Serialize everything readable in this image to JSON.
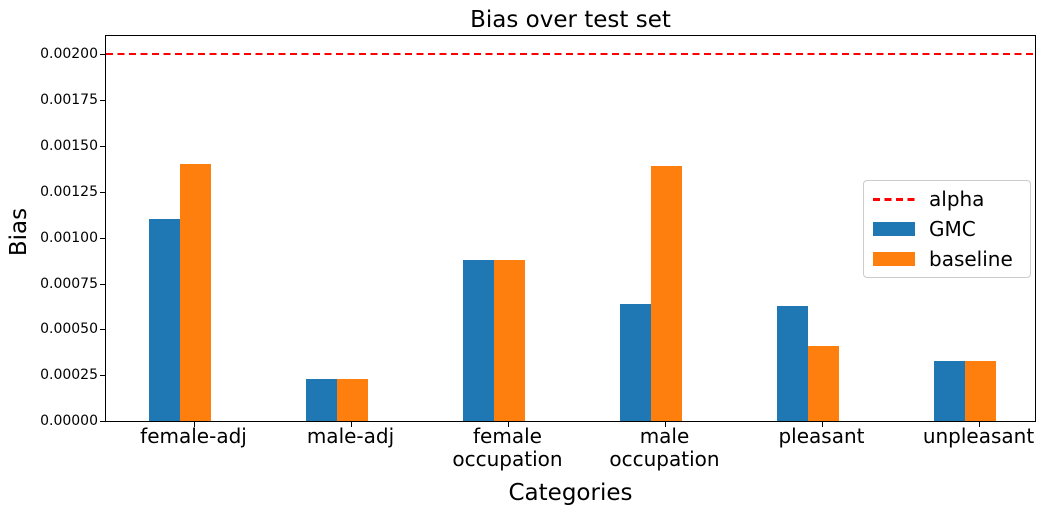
{
  "chart_data": {
    "type": "bar",
    "title": "Bias over test set",
    "xlabel": "Categories",
    "ylabel": "Bias",
    "categories": [
      "female-adj",
      "male-adj",
      "female\noccupation",
      "male\noccupation",
      "pleasant",
      "unpleasant"
    ],
    "series": [
      {
        "name": "GMC",
        "color": "#1f77b4",
        "values": [
          0.0011,
          0.00023,
          0.00088,
          0.00064,
          0.00063,
          0.00033
        ]
      },
      {
        "name": "baseline",
        "color": "#ff7f0e",
        "values": [
          0.0014,
          0.00023,
          0.00088,
          0.00139,
          0.00041,
          0.00033
        ]
      }
    ],
    "reference_line": {
      "label": "alpha",
      "value": 0.002,
      "color": "#ff0000",
      "style": "dashed"
    },
    "ylim": [
      0,
      0.0021
    ],
    "yticks": [
      "0.00000",
      "0.00025",
      "0.00050",
      "0.00075",
      "0.00100",
      "0.00125",
      "0.00150",
      "0.00175",
      "0.00200"
    ],
    "legend_position": "center-right",
    "grid": false,
    "axis_color": "#000000"
  }
}
